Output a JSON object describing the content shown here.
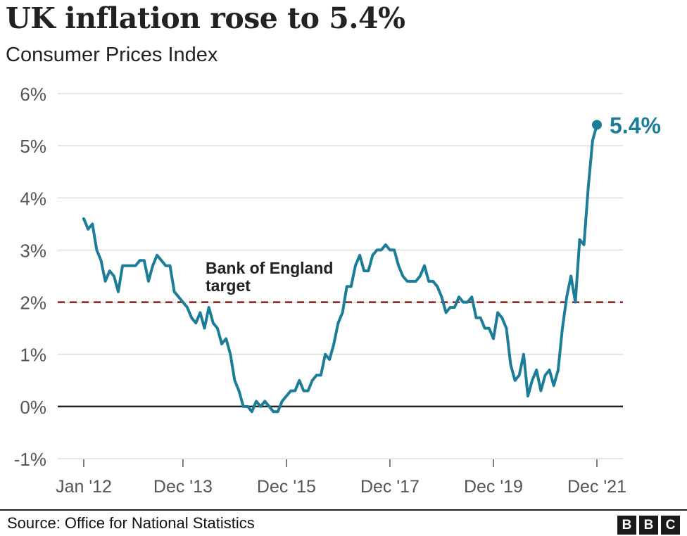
{
  "header": {
    "title": "UK inflation rose to 5.4%",
    "subtitle": "Consumer Prices Index"
  },
  "footer": {
    "source": "Source: Office for National Statistics",
    "logo_letters": [
      "B",
      "B",
      "C"
    ]
  },
  "colors": {
    "line": "#1c7d99",
    "target": "#8b1a1a",
    "grid": "#cccccc",
    "zero": "#222222"
  },
  "chart_data": {
    "type": "line",
    "ylim": [
      -1,
      6
    ],
    "yticks": [
      -1,
      0,
      1,
      2,
      3,
      4,
      5,
      6
    ],
    "ytick_labels": [
      "-1%",
      "0%",
      "1%",
      "2%",
      "3%",
      "4%",
      "5%",
      "6%"
    ],
    "xticks": [
      "2012-01",
      "2013-12",
      "2015-12",
      "2017-12",
      "2019-12",
      "2021-12"
    ],
    "xtick_labels": [
      "Jan '12",
      "Dec '13",
      "Dec '15",
      "Dec '17",
      "Dec '19",
      "Dec '21"
    ],
    "grid": true,
    "reference_line": {
      "value": 2,
      "label_line1": "Bank of England",
      "label_line2": "target",
      "style": "dashed"
    },
    "end_label": "5.4%",
    "series": [
      {
        "start": "2012-01",
        "frequency": "monthly",
        "values": [
          3.6,
          3.4,
          3.5,
          3.0,
          2.8,
          2.4,
          2.6,
          2.5,
          2.2,
          2.7,
          2.7,
          2.7,
          2.7,
          2.8,
          2.8,
          2.4,
          2.7,
          2.9,
          2.8,
          2.7,
          2.7,
          2.2,
          2.1,
          2.0,
          1.9,
          1.7,
          1.6,
          1.8,
          1.5,
          1.9,
          1.6,
          1.5,
          1.2,
          1.3,
          1.0,
          0.5,
          0.3,
          0.0,
          0.0,
          -0.1,
          0.1,
          0.0,
          0.1,
          0.0,
          -0.1,
          -0.1,
          0.1,
          0.2,
          0.3,
          0.3,
          0.5,
          0.3,
          0.3,
          0.5,
          0.6,
          0.6,
          1.0,
          0.9,
          1.2,
          1.6,
          1.8,
          2.3,
          2.3,
          2.7,
          2.9,
          2.6,
          2.6,
          2.9,
          3.0,
          3.0,
          3.1,
          3.0,
          3.0,
          2.7,
          2.5,
          2.4,
          2.4,
          2.4,
          2.5,
          2.7,
          2.4,
          2.4,
          2.3,
          2.1,
          1.8,
          1.9,
          1.9,
          2.1,
          2.0,
          2.0,
          2.1,
          1.7,
          1.7,
          1.5,
          1.5,
          1.3,
          1.8,
          1.7,
          1.5,
          0.8,
          0.5,
          0.6,
          1.0,
          0.2,
          0.5,
          0.7,
          0.3,
          0.6,
          0.7,
          0.4,
          0.7,
          1.5,
          2.1,
          2.5,
          2.0,
          3.2,
          3.1,
          4.2,
          5.1,
          5.4
        ]
      }
    ]
  }
}
